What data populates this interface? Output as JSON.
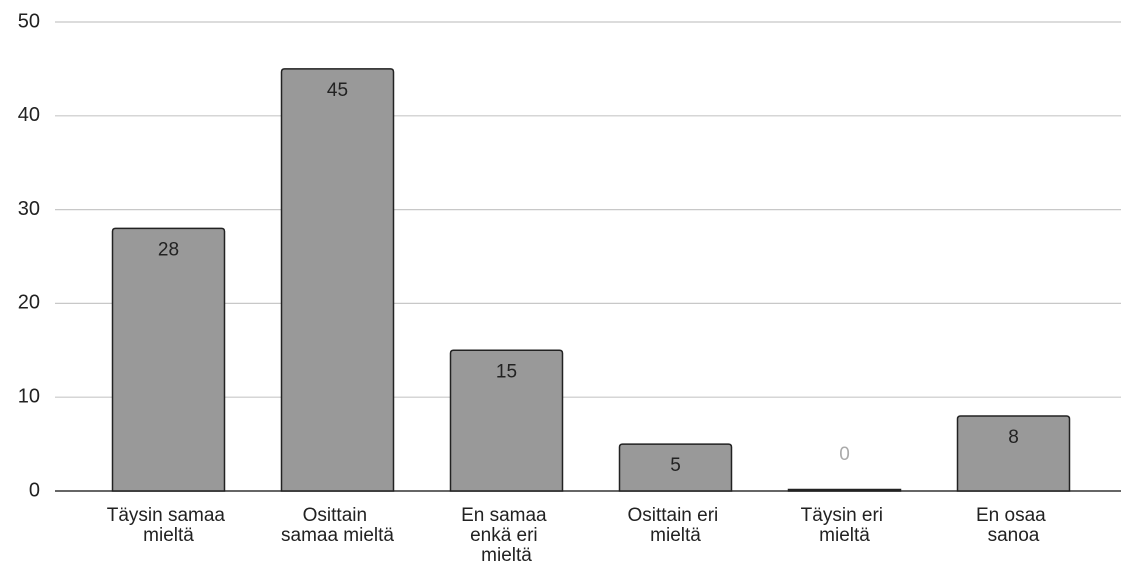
{
  "chart_data": {
    "type": "bar",
    "categories": [
      "Täysin samaa mieltä",
      "Osittain samaa mieltä",
      "En samaa enkä eri mieltä",
      "Osittain eri mieltä",
      "Täysin eri mieltä",
      "En osaa sanoa"
    ],
    "values": [
      28,
      45,
      15,
      5,
      0,
      8
    ],
    "color": "#999999",
    "ylim": [
      0,
      50
    ],
    "yticks": [
      0,
      10,
      20,
      30,
      40,
      50
    ],
    "grid": true
  }
}
